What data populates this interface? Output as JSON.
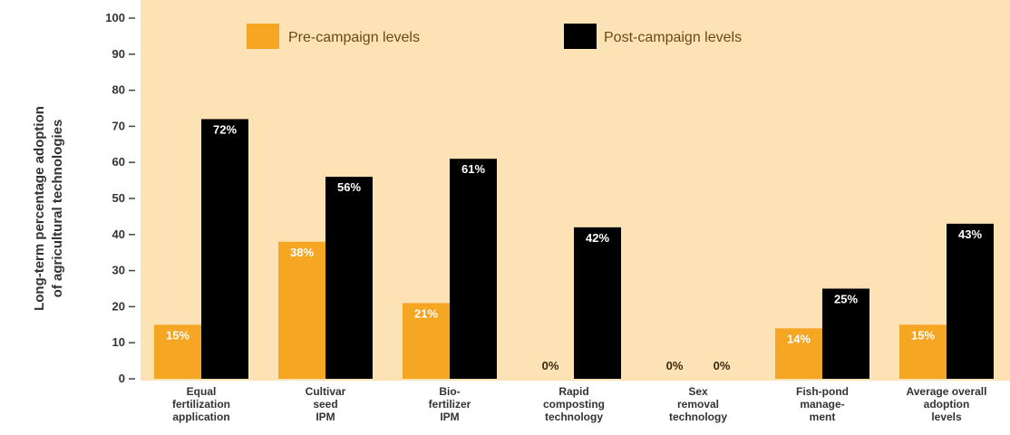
{
  "chart_data": {
    "type": "bar",
    "ylabel": [
      "Long-term percentage adoption",
      "of agricultural technologies"
    ],
    "ylim": [
      0,
      100
    ],
    "yticks": [
      0,
      10,
      20,
      30,
      40,
      50,
      60,
      70,
      80,
      90,
      100
    ],
    "grid": false,
    "legend_position": "top",
    "categories": [
      [
        "Equal",
        "fertilization",
        "application"
      ],
      [
        "Cultivar",
        "seed",
        "IPM"
      ],
      [
        "Bio-",
        "fertilizer",
        "IPM"
      ],
      [
        "Rapid",
        "composting",
        "technology"
      ],
      [
        "Sex",
        "removal",
        "technology"
      ],
      [
        "Fish-pond",
        "manage-",
        "ment"
      ],
      [
        "Average overall",
        "adoption",
        "levels"
      ]
    ],
    "series": [
      {
        "name": "Pre-campaign levels",
        "color": "#f5a623",
        "values": [
          15,
          38,
          21,
          0,
          0,
          14,
          15
        ],
        "labels": [
          "15%",
          "38%",
          "21%",
          "0%",
          "0%",
          "14%",
          "15%"
        ]
      },
      {
        "name": "Post-campaign levels",
        "color": "#000000",
        "values": [
          72,
          56,
          61,
          42,
          0,
          25,
          43
        ],
        "labels": [
          "72%",
          "56%",
          "61%",
          "42%",
          "0%",
          "25%",
          "43%"
        ]
      }
    ],
    "background": "#fde2b5"
  }
}
